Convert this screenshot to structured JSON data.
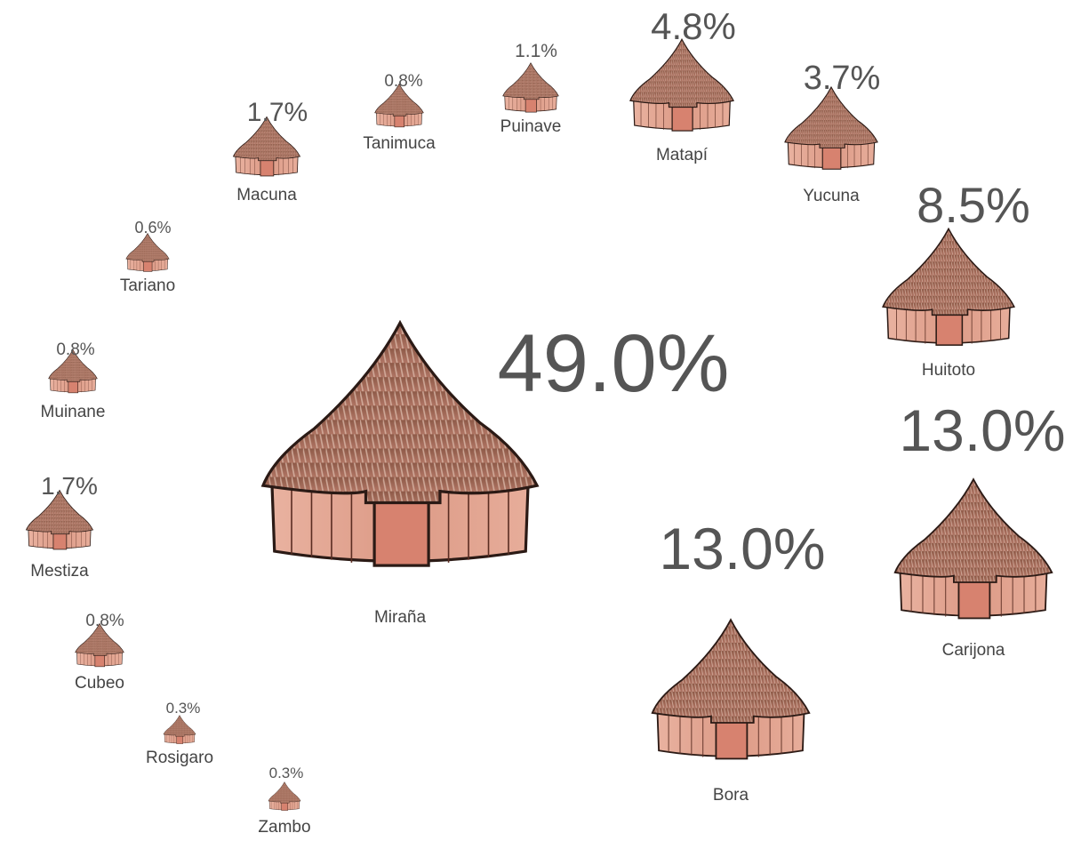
{
  "chart_data": {
    "type": "pictogram",
    "categories": [
      "Miraña",
      "Bora",
      "Carijona",
      "Huitoto",
      "Yucuna",
      "Matapí",
      "Puinave",
      "Tanimuca",
      "Macuna",
      "Tariano",
      "Muinane",
      "Mestiza",
      "Cubeo",
      "Rosigaro",
      "Zambo"
    ],
    "values": [
      49.0,
      13.0,
      13.0,
      8.5,
      3.7,
      4.8,
      1.1,
      0.8,
      1.7,
      0.6,
      0.8,
      1.7,
      0.8,
      0.3,
      0.3
    ],
    "value_labels": [
      "49.0%",
      "13.0%",
      "13.0%",
      "8.5%",
      "3.7%",
      "4.8%",
      "1.1%",
      "0.8%",
      "1.7%",
      "0.6%",
      "0.8%",
      "1.7%",
      "0.8%",
      "0.3%",
      "0.3%"
    ],
    "color": "#c98a78"
  }
}
